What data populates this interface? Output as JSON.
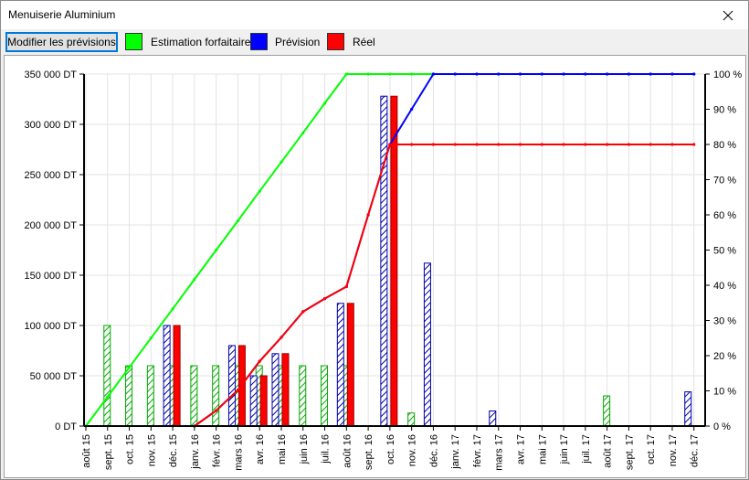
{
  "window": {
    "title": "Menuiserie Aluminium"
  },
  "toolbar": {
    "modify_label": "Modifier les prévisions",
    "legend": [
      {
        "label": "Estimation forfaitaire",
        "color": "#00ff00"
      },
      {
        "label": "Prévision",
        "color": "#0000ff"
      },
      {
        "label": "Réel",
        "color": "#ff0000"
      }
    ]
  },
  "chart_data": {
    "type": "bar",
    "categories": [
      "août 15",
      "sept. 15",
      "oct. 15",
      "nov. 15",
      "déc. 15",
      "janv. 16",
      "févr. 16",
      "mars 16",
      "avr. 16",
      "mai 16",
      "juin 16",
      "juil. 16",
      "août 16",
      "sept. 16",
      "oct. 16",
      "nov. 16",
      "déc. 16",
      "janv. 17",
      "févr. 17",
      "mars 17",
      "avr. 17",
      "mai 17",
      "juin 17",
      "juil. 17",
      "août 17",
      "sept. 17",
      "oct. 17",
      "nov. 17",
      "déc. 17"
    ],
    "y_left": {
      "ticks": [
        "0 DT",
        "50 000 DT",
        "100 000 DT",
        "150 000 DT",
        "200 000 DT",
        "250 000 DT",
        "300 000 DT",
        "350 000 DT"
      ],
      "ylim": [
        0,
        350000
      ]
    },
    "y_right": {
      "ticks": [
        "0 %",
        "10 %",
        "20 %",
        "30 %",
        "40 %",
        "50 %",
        "60 %",
        "70 %",
        "80 %",
        "90 %",
        "100 %"
      ],
      "ylim": [
        0,
        100
      ]
    },
    "grid": true,
    "bar_series": [
      {
        "name": "Estimation forfaitaire",
        "color": "#00aa00",
        "values": [
          0,
          100000,
          60000,
          60000,
          60000,
          60000,
          60000,
          60000,
          60000,
          60000,
          60000,
          60000,
          60000,
          0,
          0,
          13000,
          0,
          0,
          0,
          0,
          0,
          0,
          0,
          0,
          30000,
          0,
          0,
          0,
          0
        ]
      },
      {
        "name": "Prévision",
        "color": "#0000aa",
        "values": [
          0,
          0,
          0,
          0,
          100000,
          0,
          0,
          80000,
          50000,
          72000,
          0,
          0,
          122000,
          0,
          328000,
          0,
          162000,
          0,
          0,
          15000,
          0,
          0,
          0,
          0,
          0,
          0,
          0,
          0,
          34000
        ]
      },
      {
        "name": "Réel",
        "color": "#ff0000",
        "values": [
          0,
          0,
          0,
          0,
          100000,
          0,
          0,
          80000,
          50000,
          72000,
          0,
          0,
          122000,
          0,
          328000,
          0,
          0,
          0,
          0,
          0,
          0,
          0,
          0,
          0,
          0,
          0,
          0,
          0,
          0
        ]
      }
    ],
    "line_series": [
      {
        "name": "Estimation forfaitaire",
        "color": "#00ff00",
        "values": [
          0,
          8.3,
          16.7,
          25,
          33.3,
          41.7,
          50,
          58.3,
          66.7,
          75,
          83.3,
          91.7,
          100,
          100,
          100,
          100,
          100,
          100,
          100,
          100,
          100,
          100,
          100,
          100,
          100,
          100,
          100,
          100,
          100
        ]
      },
      {
        "name": "Prévision",
        "color": "#0000ff",
        "values": [
          null,
          null,
          null,
          null,
          null,
          0,
          4.4,
          10.2,
          18.4,
          25.2,
          32.5,
          36.2,
          39.6,
          60,
          80,
          90,
          100,
          100,
          100,
          100,
          100,
          100,
          100,
          100,
          100,
          100,
          100,
          100,
          100
        ]
      },
      {
        "name": "Réel",
        "color": "#ff0000",
        "values": [
          null,
          null,
          null,
          null,
          null,
          0,
          4.4,
          10.2,
          18.4,
          25.2,
          32.5,
          36.2,
          39.6,
          60,
          80,
          80,
          80,
          80,
          80,
          80,
          80,
          80,
          80,
          80,
          80,
          80,
          80,
          80,
          80
        ]
      }
    ]
  }
}
